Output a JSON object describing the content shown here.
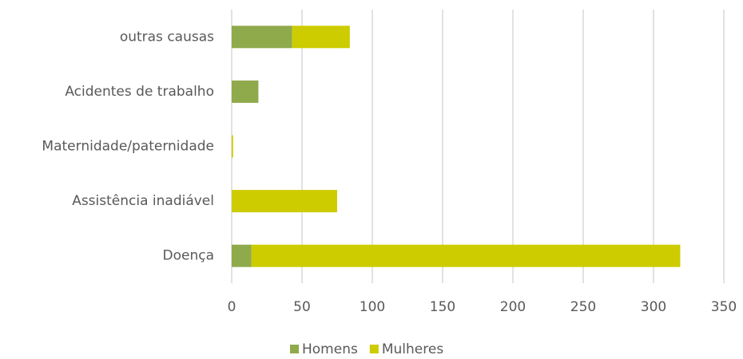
{
  "chart_data": {
    "type": "stacked_bar_horizontal",
    "categories": [
      "outras causas",
      "Acidentes de trabalho",
      "Maternidade/paternidade",
      "Assistência inadiável",
      "Doença"
    ],
    "series": [
      {
        "name": "Homens",
        "color": "#8faa4b",
        "values": [
          43,
          19,
          0,
          0,
          14
        ]
      },
      {
        "name": "Mulheres",
        "color": "#cccc00",
        "values": [
          41,
          0,
          1,
          75,
          305
        ]
      }
    ],
    "xlim": [
      0,
      350
    ],
    "xticks": [
      0,
      50,
      100,
      150,
      200,
      250,
      300,
      350
    ],
    "grid": true,
    "legend": "bottom"
  }
}
